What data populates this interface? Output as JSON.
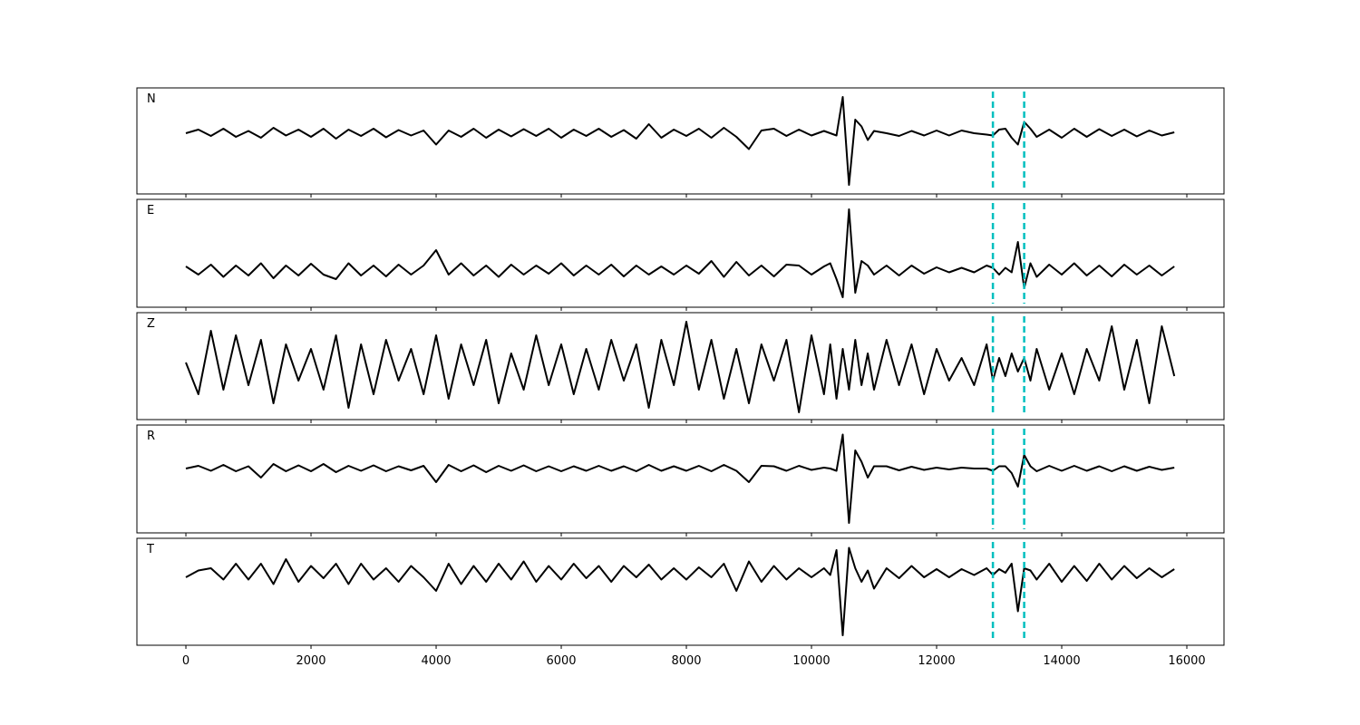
{
  "chart_data": [
    {
      "type": "line",
      "label": "N",
      "color": "#000000",
      "vline_color": "#00bfbf",
      "vlines": [
        12900,
        13400
      ],
      "xlim": [
        -783,
        16594
      ],
      "ylim": [
        -1.34,
        1.0
      ],
      "xticks": [
        0,
        2000,
        4000,
        6000,
        8000,
        10000,
        12000,
        14000,
        16000
      ],
      "x": [
        0,
        200,
        400,
        600,
        800,
        1000,
        1200,
        1400,
        1600,
        1800,
        2000,
        2200,
        2400,
        2600,
        2800,
        3000,
        3200,
        3400,
        3600,
        3800,
        4000,
        4200,
        4400,
        4600,
        4800,
        5000,
        5200,
        5400,
        5600,
        5800,
        6000,
        6200,
        6400,
        6600,
        6800,
        7000,
        7200,
        7400,
        7600,
        7800,
        8000,
        8200,
        8400,
        8600,
        8800,
        9000,
        9200,
        9400,
        9600,
        9800,
        10000,
        10200,
        10300,
        10400,
        10500,
        10600,
        10700,
        10800,
        10900,
        11000,
        11200,
        11400,
        11600,
        11800,
        12000,
        12200,
        12400,
        12600,
        12800,
        12900,
        13000,
        13100,
        13200,
        13300,
        13400,
        13500,
        13600,
        13800,
        14000,
        14200,
        14400,
        14600,
        14800,
        15000,
        15200,
        15400,
        15600,
        15800
      ],
      "values": [
        0.0,
        0.08,
        -0.06,
        0.1,
        -0.08,
        0.05,
        -0.1,
        0.12,
        -0.05,
        0.08,
        -0.08,
        0.1,
        -0.12,
        0.08,
        -0.06,
        0.1,
        -0.09,
        0.07,
        -0.05,
        0.06,
        -0.25,
        0.06,
        -0.08,
        0.1,
        -0.1,
        0.08,
        -0.07,
        0.09,
        -0.06,
        0.1,
        -0.1,
        0.08,
        -0.06,
        0.1,
        -0.08,
        0.07,
        -0.12,
        0.2,
        -0.1,
        0.08,
        -0.06,
        0.1,
        -0.1,
        0.12,
        -0.08,
        -0.35,
        0.06,
        0.1,
        -0.06,
        0.08,
        -0.05,
        0.05,
        0.0,
        -0.05,
        0.8,
        -1.14,
        0.3,
        0.15,
        -0.15,
        0.05,
        0.0,
        -0.06,
        0.05,
        -0.05,
        0.06,
        -0.05,
        0.06,
        0.0,
        -0.03,
        -0.05,
        0.08,
        0.1,
        -0.1,
        -0.25,
        0.25,
        0.1,
        -0.08,
        0.08,
        -0.1,
        0.1,
        -0.08,
        0.09,
        -0.06,
        0.08,
        -0.07,
        0.06,
        -0.05,
        0.02
      ]
    },
    {
      "type": "line",
      "label": "E",
      "color": "#000000",
      "vline_color": "#00bfbf",
      "vlines": [
        12900,
        13400
      ],
      "xlim": [
        -783,
        16594
      ],
      "ylim": [
        -0.82,
        1.56
      ],
      "xticks": [
        0,
        2000,
        4000,
        6000,
        8000,
        10000,
        12000,
        14000,
        16000
      ],
      "x": [
        0,
        200,
        400,
        600,
        800,
        1000,
        1200,
        1400,
        1600,
        1800,
        2000,
        2200,
        2400,
        2600,
        2800,
        3000,
        3200,
        3400,
        3600,
        3800,
        4000,
        4200,
        4400,
        4600,
        4800,
        5000,
        5200,
        5400,
        5600,
        5800,
        6000,
        6200,
        6400,
        6600,
        6800,
        7000,
        7200,
        7400,
        7600,
        7800,
        8000,
        8200,
        8400,
        8600,
        8800,
        9000,
        9200,
        9400,
        9600,
        9800,
        10000,
        10200,
        10300,
        10400,
        10500,
        10600,
        10700,
        10800,
        10900,
        11000,
        11200,
        11400,
        11600,
        11800,
        12000,
        12200,
        12400,
        12600,
        12800,
        12900,
        13000,
        13100,
        13200,
        13300,
        13400,
        13500,
        13600,
        13800,
        14000,
        14200,
        14400,
        14600,
        14800,
        15000,
        15200,
        15400,
        15600,
        15800
      ],
      "values": [
        0.08,
        -0.1,
        0.12,
        -0.15,
        0.1,
        -0.12,
        0.15,
        -0.18,
        0.1,
        -0.12,
        0.14,
        -0.1,
        -0.2,
        0.15,
        -0.12,
        0.1,
        -0.14,
        0.12,
        -0.1,
        0.1,
        0.44,
        -0.1,
        0.15,
        -0.12,
        0.1,
        -0.15,
        0.12,
        -0.1,
        0.1,
        -0.08,
        0.15,
        -0.12,
        0.1,
        -0.1,
        0.12,
        -0.14,
        0.1,
        -0.1,
        0.08,
        -0.1,
        0.1,
        -0.08,
        0.2,
        -0.15,
        0.18,
        -0.12,
        0.1,
        -0.14,
        0.12,
        0.1,
        -0.1,
        0.08,
        0.15,
        -0.2,
        -0.6,
        1.34,
        -0.5,
        0.2,
        0.1,
        -0.1,
        0.1,
        -0.12,
        0.1,
        -0.08,
        0.06,
        -0.05,
        0.05,
        -0.05,
        0.1,
        0.05,
        -0.1,
        0.05,
        -0.05,
        0.62,
        -0.4,
        0.15,
        -0.15,
        0.12,
        -0.1,
        0.15,
        -0.12,
        0.1,
        -0.14,
        0.12,
        -0.1,
        0.1,
        -0.12,
        0.08
      ]
    },
    {
      "type": "line",
      "label": "Z",
      "color": "#000000",
      "vline_color": "#00bfbf",
      "vlines": [
        12900,
        13400
      ],
      "xlim": [
        -783,
        16594
      ],
      "ylim": [
        -1.16,
        1.2
      ],
      "xticks": [
        0,
        2000,
        4000,
        6000,
        8000,
        10000,
        12000,
        14000,
        16000
      ],
      "x": [
        0,
        200,
        400,
        600,
        800,
        1000,
        1200,
        1400,
        1600,
        1800,
        2000,
        2200,
        2400,
        2600,
        2800,
        3000,
        3200,
        3400,
        3600,
        3800,
        4000,
        4200,
        4400,
        4600,
        4800,
        5000,
        5200,
        5400,
        5600,
        5800,
        6000,
        6200,
        6400,
        6600,
        6800,
        7000,
        7200,
        7400,
        7600,
        7800,
        8000,
        8200,
        8400,
        8600,
        8800,
        9000,
        9200,
        9400,
        9600,
        9800,
        10000,
        10200,
        10300,
        10400,
        10500,
        10600,
        10700,
        10800,
        10900,
        11000,
        11200,
        11400,
        11600,
        11800,
        12000,
        12200,
        12400,
        12600,
        12800,
        12900,
        13000,
        13100,
        13200,
        13300,
        13400,
        13500,
        13600,
        13800,
        14000,
        14200,
        14400,
        14600,
        14800,
        15000,
        15200,
        15400,
        15600,
        15800
      ],
      "values": [
        0.1,
        -0.6,
        0.8,
        -0.5,
        0.7,
        -0.4,
        0.6,
        -0.8,
        0.5,
        -0.3,
        0.4,
        -0.5,
        0.7,
        -0.9,
        0.5,
        -0.6,
        0.6,
        -0.3,
        0.4,
        -0.6,
        0.7,
        -0.7,
        0.5,
        -0.4,
        0.6,
        -0.8,
        0.3,
        -0.5,
        0.7,
        -0.4,
        0.5,
        -0.6,
        0.4,
        -0.5,
        0.6,
        -0.3,
        0.5,
        -0.9,
        0.6,
        -0.4,
        1.0,
        -0.5,
        0.6,
        -0.7,
        0.4,
        -0.8,
        0.5,
        -0.3,
        0.6,
        -1.0,
        0.7,
        -0.6,
        0.5,
        -0.7,
        0.4,
        -0.5,
        0.6,
        -0.4,
        0.3,
        -0.5,
        0.6,
        -0.4,
        0.5,
        -0.6,
        0.4,
        -0.3,
        0.2,
        -0.4,
        0.5,
        -0.3,
        0.2,
        -0.2,
        0.3,
        -0.1,
        0.2,
        -0.3,
        0.4,
        -0.5,
        0.3,
        -0.6,
        0.4,
        -0.3,
        0.9,
        -0.5,
        0.6,
        -0.8,
        0.9,
        -0.2
      ]
    },
    {
      "type": "line",
      "label": "R",
      "color": "#000000",
      "vline_color": "#00bfbf",
      "vlines": [
        12900,
        13400
      ],
      "xlim": [
        -783,
        16594
      ],
      "ylim": [
        -1.42,
        0.96
      ],
      "xticks": [
        0,
        2000,
        4000,
        6000,
        8000,
        10000,
        12000,
        14000,
        16000
      ],
      "x": [
        0,
        200,
        400,
        600,
        800,
        1000,
        1200,
        1400,
        1600,
        1800,
        2000,
        2200,
        2400,
        2600,
        2800,
        3000,
        3200,
        3400,
        3600,
        3800,
        4000,
        4200,
        4400,
        4600,
        4800,
        5000,
        5200,
        5400,
        5600,
        5800,
        6000,
        6200,
        6400,
        6600,
        6800,
        7000,
        7200,
        7400,
        7600,
        7800,
        8000,
        8200,
        8400,
        8600,
        8800,
        9000,
        9200,
        9400,
        9600,
        9800,
        10000,
        10200,
        10300,
        10400,
        10500,
        10600,
        10700,
        10800,
        10900,
        11000,
        11200,
        11400,
        11600,
        11800,
        12000,
        12200,
        12400,
        12600,
        12800,
        12900,
        13000,
        13100,
        13200,
        13300,
        13400,
        13500,
        13600,
        13800,
        14000,
        14200,
        14400,
        14600,
        14800,
        15000,
        15200,
        15400,
        15600,
        15800
      ],
      "values": [
        0.0,
        0.06,
        -0.05,
        0.08,
        -0.06,
        0.05,
        -0.2,
        0.1,
        -0.06,
        0.07,
        -0.06,
        0.1,
        -0.08,
        0.06,
        -0.05,
        0.07,
        -0.06,
        0.05,
        -0.04,
        0.06,
        -0.3,
        0.08,
        -0.06,
        0.07,
        -0.08,
        0.06,
        -0.05,
        0.07,
        -0.06,
        0.05,
        -0.06,
        0.05,
        -0.05,
        0.06,
        -0.05,
        0.05,
        -0.06,
        0.08,
        -0.05,
        0.05,
        -0.05,
        0.06,
        -0.06,
        0.08,
        -0.05,
        -0.3,
        0.06,
        0.05,
        -0.05,
        0.06,
        -0.03,
        0.02,
        0.0,
        -0.05,
        0.75,
        -1.2,
        0.4,
        0.15,
        -0.2,
        0.05,
        0.05,
        -0.04,
        0.04,
        -0.03,
        0.02,
        -0.02,
        0.02,
        0.0,
        0.0,
        -0.05,
        0.05,
        0.05,
        -0.1,
        -0.4,
        0.3,
        0.05,
        -0.06,
        0.06,
        -0.05,
        0.06,
        -0.05,
        0.05,
        -0.06,
        0.05,
        -0.05,
        0.04,
        -0.03,
        0.02
      ]
    },
    {
      "type": "line",
      "label": "T",
      "color": "#000000",
      "vline_color": "#00bfbf",
      "vlines": [
        12900,
        13400
      ],
      "xlim": [
        -783,
        16594
      ],
      "ylim": [
        -1.6,
        0.76
      ],
      "xticks": [
        0,
        2000,
        4000,
        6000,
        8000,
        10000,
        12000,
        14000,
        16000
      ],
      "x": [
        0,
        200,
        400,
        600,
        800,
        1000,
        1200,
        1400,
        1600,
        1800,
        2000,
        2200,
        2400,
        2600,
        2800,
        3000,
        3200,
        3400,
        3600,
        3800,
        4000,
        4200,
        4400,
        4600,
        4800,
        5000,
        5200,
        5400,
        5600,
        5800,
        6000,
        6200,
        6400,
        6600,
        6800,
        7000,
        7200,
        7400,
        7600,
        7800,
        8000,
        8200,
        8400,
        8600,
        8800,
        9000,
        9200,
        9400,
        9600,
        9800,
        10000,
        10200,
        10300,
        10400,
        10500,
        10600,
        10700,
        10800,
        10900,
        11000,
        11200,
        11400,
        11600,
        11800,
        12000,
        12200,
        12400,
        12600,
        12800,
        12900,
        13000,
        13100,
        13200,
        13300,
        13400,
        13500,
        13600,
        13800,
        14000,
        14200,
        14400,
        14600,
        14800,
        15000,
        15200,
        15400,
        15600,
        15800
      ],
      "values": [
        -0.1,
        0.05,
        0.1,
        -0.15,
        0.2,
        -0.15,
        0.2,
        -0.25,
        0.3,
        -0.2,
        0.15,
        -0.12,
        0.2,
        -0.25,
        0.2,
        -0.15,
        0.1,
        -0.2,
        0.15,
        -0.1,
        -0.4,
        0.2,
        -0.25,
        0.15,
        -0.2,
        0.2,
        -0.15,
        0.25,
        -0.2,
        0.15,
        -0.15,
        0.2,
        -0.12,
        0.15,
        -0.2,
        0.15,
        -0.1,
        0.18,
        -0.15,
        0.1,
        -0.15,
        0.12,
        -0.1,
        0.2,
        -0.4,
        0.25,
        -0.2,
        0.15,
        -0.15,
        0.1,
        -0.1,
        0.1,
        -0.05,
        0.5,
        -1.38,
        0.55,
        0.1,
        -0.2,
        0.05,
        -0.35,
        0.1,
        -0.12,
        0.15,
        -0.1,
        0.08,
        -0.1,
        0.08,
        -0.05,
        0.1,
        -0.05,
        0.08,
        0.0,
        0.2,
        -0.85,
        0.1,
        0.05,
        -0.15,
        0.2,
        -0.2,
        0.15,
        -0.18,
        0.2,
        -0.15,
        0.15,
        -0.12,
        0.1,
        -0.1,
        0.08
      ]
    }
  ]
}
